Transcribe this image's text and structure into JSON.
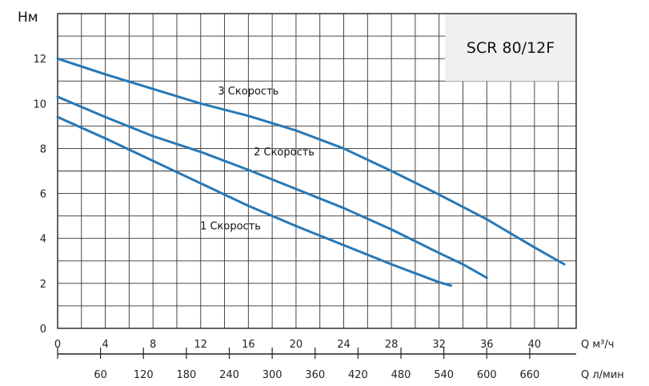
{
  "chart_data": {
    "type": "line",
    "title": "SCR 80/12F",
    "ylabel": "Нм",
    "xlabel": "Q м³/ч",
    "x2label": "Q л/мин",
    "xlim": [
      0,
      43.5
    ],
    "ylim": [
      0,
      14
    ],
    "x_ticks": [
      "0",
      "4",
      "8",
      "12",
      "16",
      "20",
      "24",
      "28",
      "32",
      "36",
      "40"
    ],
    "x_tick_values": [
      0,
      4,
      8,
      12,
      16,
      20,
      24,
      28,
      32,
      36,
      40
    ],
    "x2_ticks": [
      "60",
      "120",
      "180",
      "240",
      "300",
      "360",
      "420",
      "480",
      "540",
      "600",
      "660"
    ],
    "x2_tick_values_m3h": [
      3.6,
      7.2,
      10.8,
      14.4,
      18,
      21.6,
      25.2,
      28.8,
      32.4,
      36,
      39.6
    ],
    "y_ticks": [
      "0",
      "2",
      "4",
      "6",
      "8",
      "10",
      "12"
    ],
    "y_tick_values": [
      0,
      2,
      4,
      6,
      8,
      10,
      12
    ],
    "grid": true,
    "series": [
      {
        "name": "3 Скорость",
        "color": "#2878b6",
        "x": [
          0,
          4,
          8,
          12,
          16,
          20,
          24,
          28,
          32,
          36,
          40,
          42.5
        ],
        "y": [
          12.0,
          11.3,
          10.65,
          10.0,
          9.45,
          8.8,
          8.0,
          7.0,
          5.95,
          4.85,
          3.6,
          2.85
        ],
        "label_at": [
          16,
          10.4
        ]
      },
      {
        "name": "2 Скорость",
        "color": "#2878b6",
        "x": [
          0,
          4,
          8,
          12,
          16,
          20,
          24,
          28,
          32,
          34,
          36
        ],
        "y": [
          10.3,
          9.4,
          8.55,
          7.85,
          7.05,
          6.2,
          5.35,
          4.4,
          3.35,
          2.85,
          2.25
        ],
        "label_at": [
          19,
          7.7
        ]
      },
      {
        "name": "1 Скорость",
        "color": "#2878b6",
        "x": [
          0,
          4,
          8,
          12,
          16,
          20,
          24,
          28,
          32,
          33
        ],
        "y": [
          9.4,
          8.45,
          7.45,
          6.45,
          5.45,
          4.55,
          3.7,
          2.85,
          2.05,
          1.9
        ],
        "label_at": [
          14.5,
          4.4
        ]
      }
    ]
  }
}
